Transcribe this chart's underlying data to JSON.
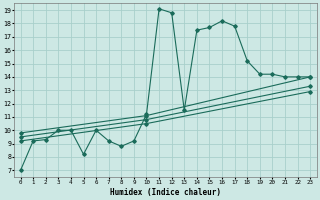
{
  "xlabel": "Humidex (Indice chaleur)",
  "bg_color": "#cde8e4",
  "grid_color": "#a8d0cb",
  "line_color": "#1a6b5a",
  "xlim": [
    -0.5,
    23.5
  ],
  "ylim": [
    6.5,
    19.5
  ],
  "xticks": [
    0,
    1,
    2,
    3,
    4,
    5,
    6,
    7,
    8,
    9,
    10,
    11,
    12,
    13,
    14,
    15,
    16,
    17,
    18,
    19,
    20,
    21,
    22,
    23
  ],
  "yticks": [
    7,
    8,
    9,
    10,
    11,
    12,
    13,
    14,
    15,
    16,
    17,
    18,
    19
  ],
  "line1_x": [
    0,
    1,
    2,
    3,
    4,
    5,
    6,
    7,
    8,
    9,
    10,
    11,
    12,
    13,
    14,
    15,
    16,
    17,
    18,
    19,
    20,
    21,
    22,
    23
  ],
  "line1_y": [
    7.0,
    9.2,
    9.3,
    10.0,
    10.0,
    8.2,
    10.0,
    9.2,
    8.8,
    9.2,
    11.2,
    19.1,
    18.8,
    11.5,
    17.5,
    17.7,
    18.2,
    17.8,
    15.2,
    14.2,
    14.2,
    14.0,
    14.0,
    14.0
  ],
  "line2_x": [
    0,
    10,
    23
  ],
  "line2_y": [
    9.8,
    11.1,
    14.0
  ],
  "line3_x": [
    0,
    10,
    23
  ],
  "line3_y": [
    9.5,
    10.8,
    13.3
  ],
  "line4_x": [
    0,
    10,
    23
  ],
  "line4_y": [
    9.2,
    10.5,
    12.9
  ]
}
